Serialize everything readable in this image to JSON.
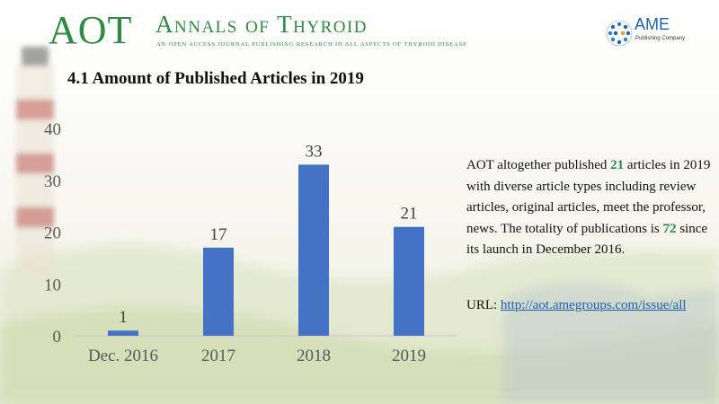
{
  "header": {
    "logo_abbr": "AOT",
    "journal_name": "Annals of Thyroid",
    "journal_tagline": "An open access journal publishing research in all aspects of thyroid disease",
    "publisher_name": "AME",
    "publisher_sub": "Publishing Company"
  },
  "section_title": "4.1 Amount of Published Articles in 2019",
  "colors": {
    "accent_green": "#2f8a43",
    "bar_blue": "#4472c4",
    "link_blue": "#1f5fa8"
  },
  "chart_data": {
    "type": "bar",
    "categories": [
      "Dec. 2016",
      "2017",
      "2018",
      "2019"
    ],
    "values": [
      1,
      17,
      33,
      21
    ],
    "data_labels": [
      "1",
      "17",
      "33",
      "21"
    ],
    "ylim": [
      0,
      40
    ],
    "yticks": [
      "0",
      "10",
      "20",
      "30",
      "40"
    ],
    "title": "",
    "xlabel": "",
    "ylabel": "",
    "grid": false,
    "color": "#4472c4"
  },
  "description": {
    "part1": "AOT altogether published ",
    "count_2019": "21",
    "part2": " articles in 2019 with diverse article types including review articles, original articles, meet the professor, news. The totality of publications is ",
    "total": "72",
    "part3": " since its launch in December 2016."
  },
  "url": {
    "label": "URL: ",
    "link": "http://aot.amegroups.com/issue/all"
  }
}
